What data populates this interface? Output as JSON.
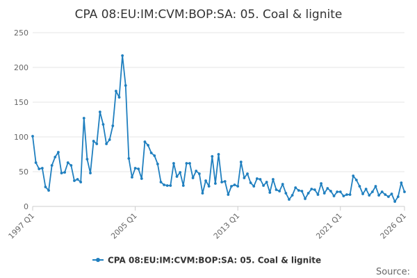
{
  "chart_data": {
    "type": "line",
    "title": "CPA 08:EU:IM:CVM:BOP:SA: 05. Coal & lignite",
    "xlabel": "",
    "ylabel": "",
    "ylim": [
      0,
      250
    ],
    "yticks": [
      "0",
      "50",
      "100",
      "150",
      "200",
      "250"
    ],
    "xticks": [
      "1997 Q1",
      "2005 Q1",
      "2013 Q1",
      "2021 Q1",
      "2026 Q1"
    ],
    "x_start_label": "1997 Q1",
    "x_end_label": "2026 Q1",
    "grid": "horizontal",
    "legend_position": "bottom",
    "source_label": "Source:",
    "series": [
      {
        "name": "CPA 08:EU:IM:CVM:BOP:SA: 05. Coal & lignite",
        "color": "#1f7fbf",
        "values": [
          101,
          63,
          54,
          55,
          28,
          23,
          59,
          71,
          78,
          48,
          49,
          63,
          59,
          37,
          39,
          35,
          127,
          68,
          48,
          94,
          90,
          136,
          118,
          90,
          96,
          116,
          166,
          157,
          217,
          174,
          69,
          42,
          55,
          54,
          40,
          93,
          88,
          77,
          73,
          61,
          35,
          31,
          30,
          30,
          62,
          43,
          49,
          30,
          62,
          62,
          41,
          51,
          47,
          19,
          37,
          29,
          72,
          33,
          75,
          35,
          36,
          17,
          29,
          31,
          29,
          64,
          41,
          47,
          34,
          29,
          40,
          39,
          30,
          35,
          20,
          39,
          24,
          22,
          32,
          19,
          10,
          16,
          27,
          23,
          22,
          11,
          19,
          25,
          24,
          17,
          33,
          19,
          26,
          22,
          15,
          21,
          21,
          15,
          17,
          17,
          44,
          38,
          29,
          18,
          25,
          16,
          21,
          29,
          16,
          21,
          17,
          14,
          18,
          7,
          14,
          34,
          21
        ]
      }
    ]
  }
}
